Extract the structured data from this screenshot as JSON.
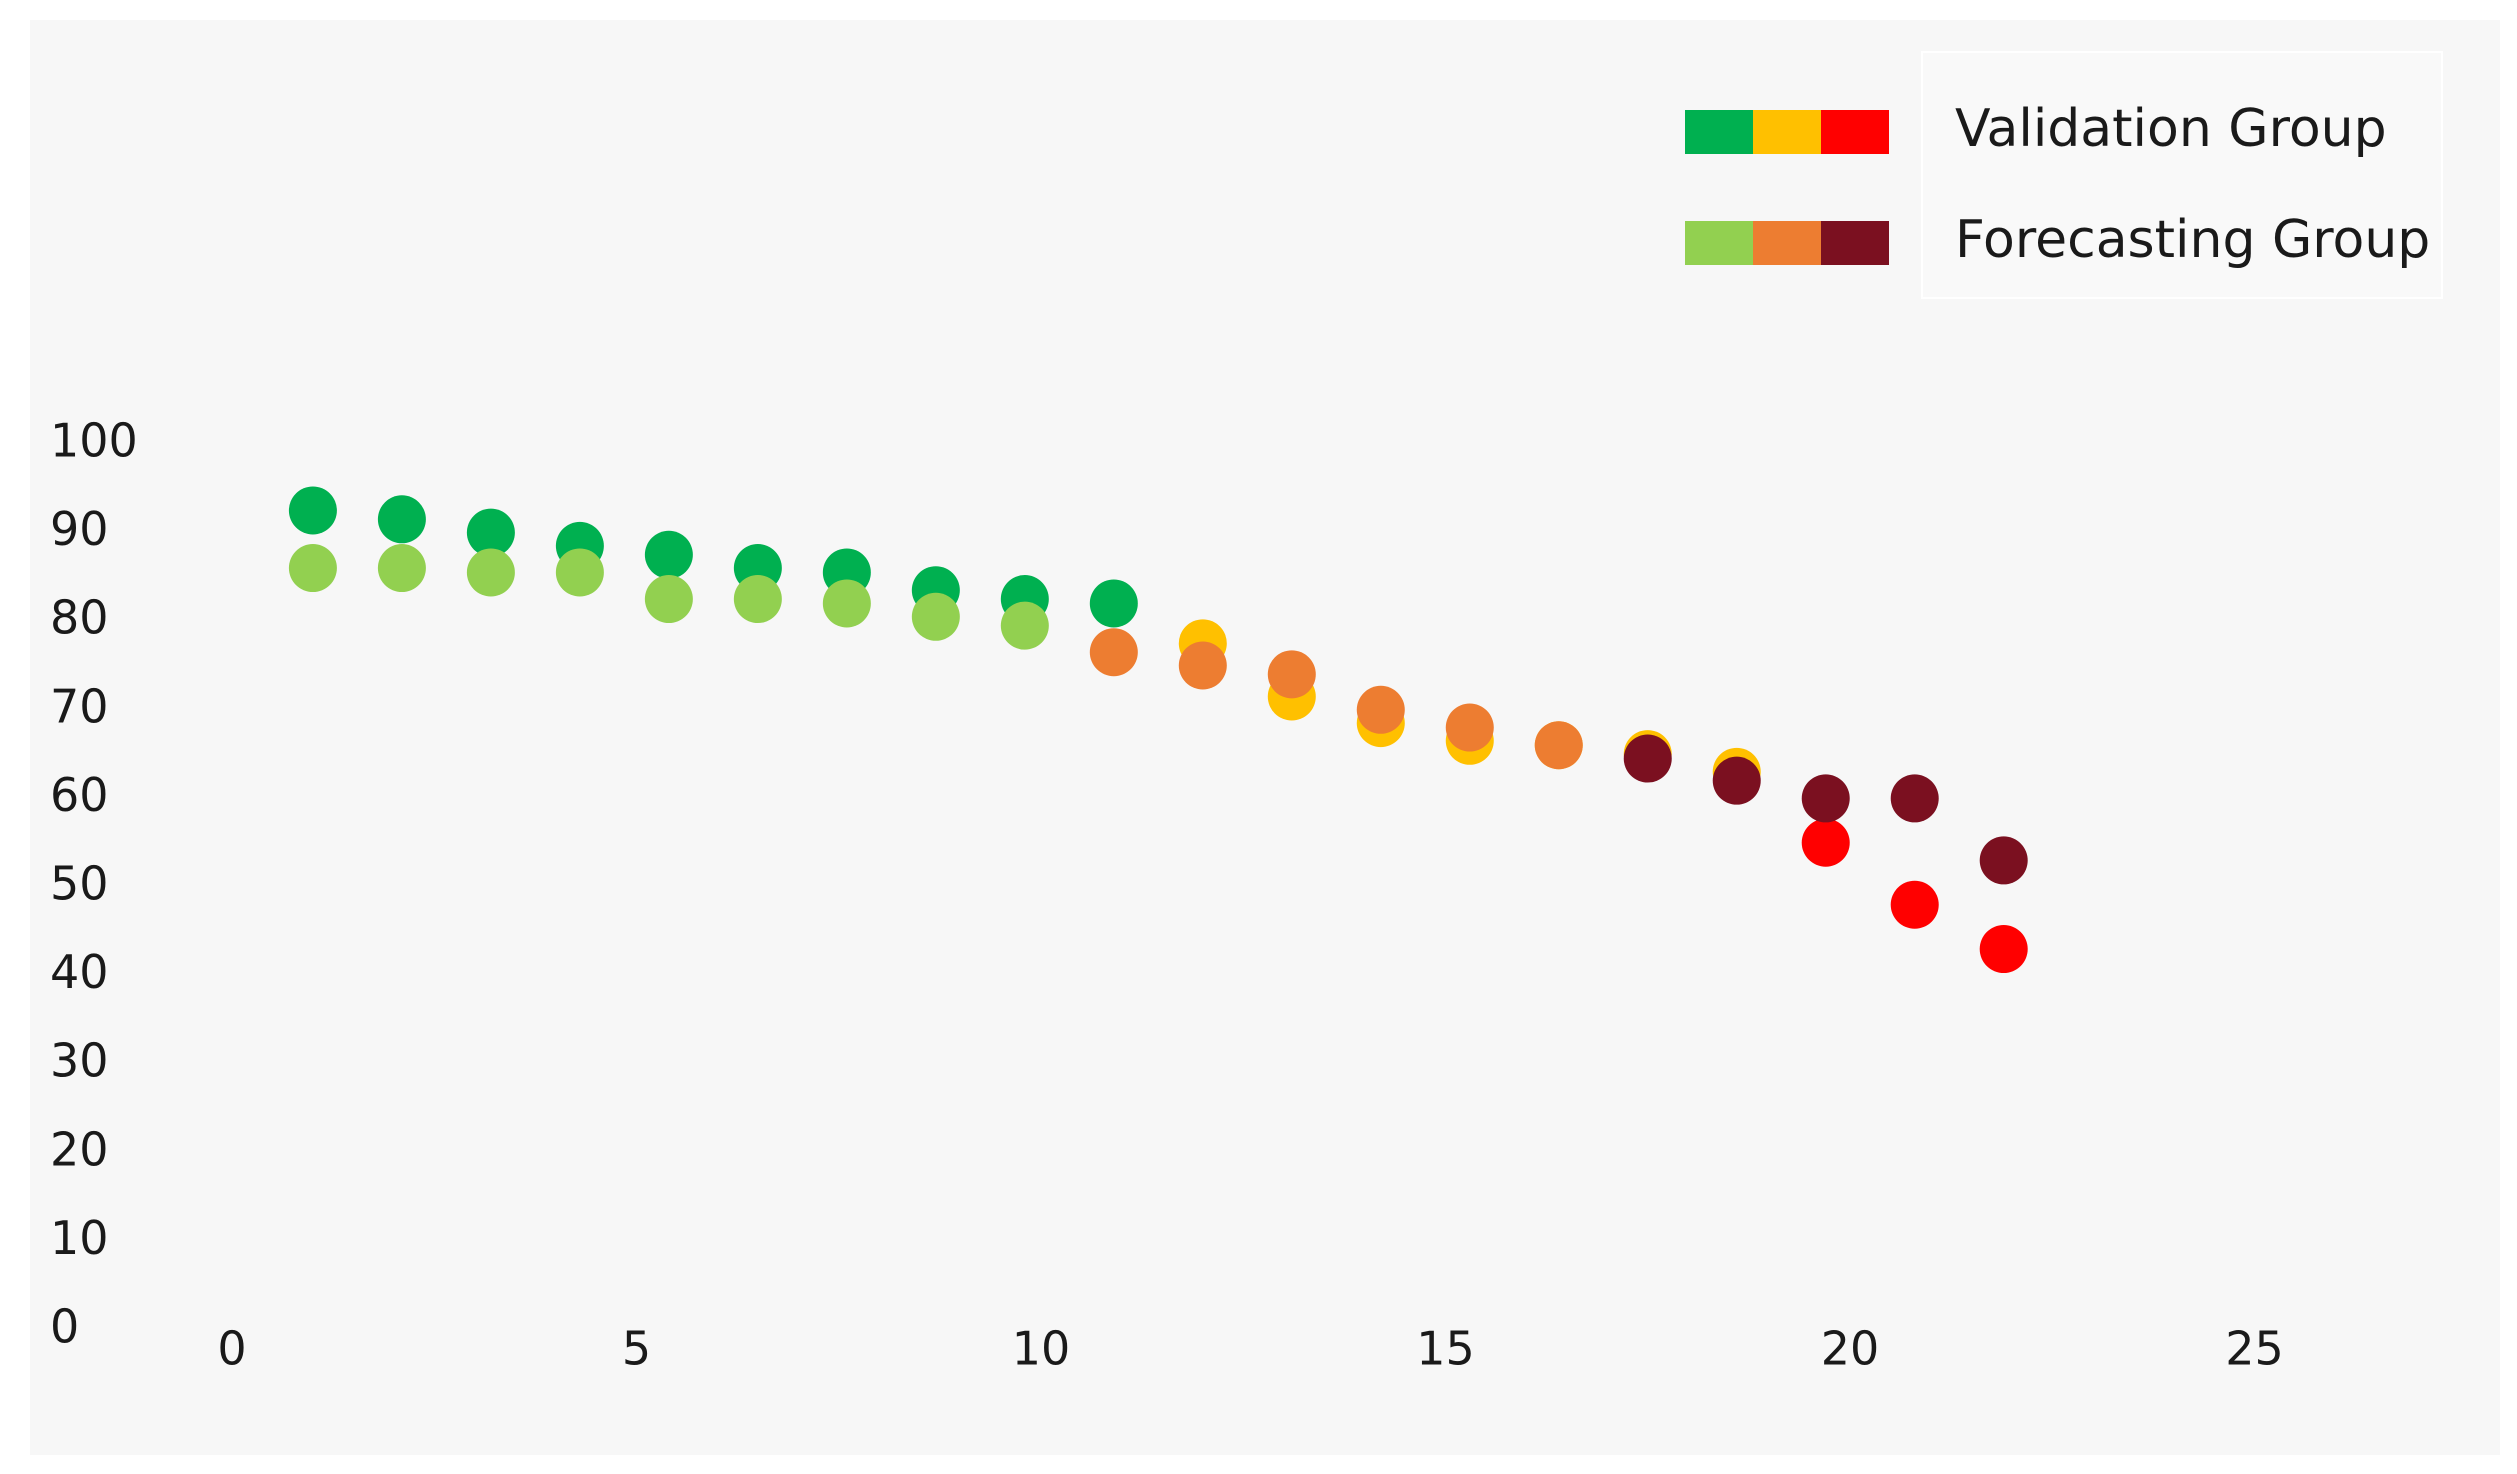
{
  "chart_data": {
    "type": "scatter",
    "title": "",
    "xlabel": "",
    "ylabel": "",
    "xlim": [
      0,
      25
    ],
    "ylim": [
      0,
      100
    ],
    "x_ticks": [
      "0",
      "5",
      "10",
      "15",
      "20",
      "25"
    ],
    "y_ticks": [
      "0",
      "10",
      "20",
      "30",
      "40",
      "50",
      "60",
      "70",
      "80",
      "90",
      "100"
    ],
    "grid": false,
    "legend_position": "top-right",
    "background_color": "#f7f7f7",
    "series": [
      {
        "name": "Validation Group",
        "legend_colors": [
          "#00b050",
          "#ffc000",
          "#ff0000"
        ],
        "points": [
          {
            "x": 1.0,
            "y": 92.5,
            "color": "#00b050"
          },
          {
            "x": 2.1,
            "y": 91.5,
            "color": "#00b050"
          },
          {
            "x": 3.2,
            "y": 90.0,
            "color": "#00b050"
          },
          {
            "x": 4.3,
            "y": 88.5,
            "color": "#00b050"
          },
          {
            "x": 5.4,
            "y": 87.5,
            "color": "#00b050"
          },
          {
            "x": 6.5,
            "y": 86.0,
            "color": "#00b050"
          },
          {
            "x": 7.6,
            "y": 85.5,
            "color": "#00b050"
          },
          {
            "x": 8.7,
            "y": 83.5,
            "color": "#00b050"
          },
          {
            "x": 9.8,
            "y": 82.5,
            "color": "#00b050"
          },
          {
            "x": 10.9,
            "y": 82.0,
            "color": "#00b050"
          },
          {
            "x": 12.0,
            "y": 77.5,
            "color": "#ffc000"
          },
          {
            "x": 13.1,
            "y": 71.5,
            "color": "#ffc000"
          },
          {
            "x": 14.2,
            "y": 68.5,
            "color": "#ffc000"
          },
          {
            "x": 15.3,
            "y": 66.5,
            "color": "#ffc000"
          },
          {
            "x": 16.4,
            "y": 66.0,
            "color": "#ffc000"
          },
          {
            "x": 17.5,
            "y": 65.0,
            "color": "#ffc000"
          },
          {
            "x": 18.6,
            "y": 63.0,
            "color": "#ffc000"
          },
          {
            "x": 19.7,
            "y": 55.0,
            "color": "#ff0000"
          },
          {
            "x": 20.8,
            "y": 48.0,
            "color": "#ff0000"
          },
          {
            "x": 21.9,
            "y": 43.0,
            "color": "#ff0000"
          }
        ]
      },
      {
        "name": "Forecasting Group",
        "legend_colors": [
          "#92d050",
          "#ed7d31",
          "#7b1020"
        ],
        "points": [
          {
            "x": 1.0,
            "y": 86.0,
            "color": "#92d050"
          },
          {
            "x": 2.1,
            "y": 86.0,
            "color": "#92d050"
          },
          {
            "x": 3.2,
            "y": 85.5,
            "color": "#92d050"
          },
          {
            "x": 4.3,
            "y": 85.5,
            "color": "#92d050"
          },
          {
            "x": 5.4,
            "y": 82.5,
            "color": "#92d050"
          },
          {
            "x": 6.5,
            "y": 82.5,
            "color": "#92d050"
          },
          {
            "x": 7.6,
            "y": 82.0,
            "color": "#92d050"
          },
          {
            "x": 8.7,
            "y": 80.5,
            "color": "#92d050"
          },
          {
            "x": 9.8,
            "y": 79.5,
            "color": "#92d050"
          },
          {
            "x": 10.9,
            "y": 76.5,
            "color": "#ed7d31"
          },
          {
            "x": 12.0,
            "y": 75.0,
            "color": "#ed7d31"
          },
          {
            "x": 13.1,
            "y": 74.0,
            "color": "#ed7d31"
          },
          {
            "x": 14.2,
            "y": 70.0,
            "color": "#ed7d31"
          },
          {
            "x": 15.3,
            "y": 68.0,
            "color": "#ed7d31"
          },
          {
            "x": 16.4,
            "y": 66.0,
            "color": "#ed7d31"
          },
          {
            "x": 17.5,
            "y": 64.5,
            "color": "#7b1020"
          },
          {
            "x": 18.6,
            "y": 62.0,
            "color": "#7b1020"
          },
          {
            "x": 19.7,
            "y": 60.0,
            "color": "#7b1020"
          },
          {
            "x": 20.8,
            "y": 60.0,
            "color": "#7b1020"
          },
          {
            "x": 21.9,
            "y": 53.0,
            "color": "#7b1020"
          }
        ]
      }
    ]
  }
}
